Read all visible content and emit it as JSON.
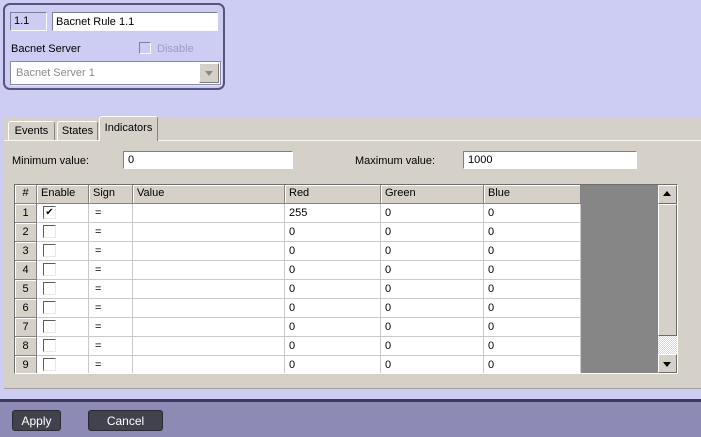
{
  "header_panel": {
    "id_value": "1.1",
    "name_value": "Bacnet Rule 1.1",
    "server_label": "Bacnet Server",
    "disable_label": "Disable",
    "disable_checked": false,
    "server_value": "Bacnet Server 1"
  },
  "tabs": [
    {
      "label": "Events",
      "active": false
    },
    {
      "label": "States",
      "active": false
    },
    {
      "label": "Indicators",
      "active": true
    }
  ],
  "range": {
    "min_label": "Minimum value:",
    "min_value": "0",
    "max_label": "Maximum value:",
    "max_value": "1000"
  },
  "table": {
    "columns": [
      "#",
      "Enable",
      "Sign",
      "Value",
      "Red",
      "Green",
      "Blue"
    ],
    "check_glyph": "✔",
    "rows": [
      {
        "num": "1",
        "enabled": true,
        "sign": "=",
        "value": "",
        "red": "255",
        "green": "0",
        "blue": "0"
      },
      {
        "num": "2",
        "enabled": false,
        "sign": "=",
        "value": "",
        "red": "0",
        "green": "0",
        "blue": "0"
      },
      {
        "num": "3",
        "enabled": false,
        "sign": "=",
        "value": "",
        "red": "0",
        "green": "0",
        "blue": "0"
      },
      {
        "num": "4",
        "enabled": false,
        "sign": "=",
        "value": "",
        "red": "0",
        "green": "0",
        "blue": "0"
      },
      {
        "num": "5",
        "enabled": false,
        "sign": "=",
        "value": "",
        "red": "0",
        "green": "0",
        "blue": "0"
      },
      {
        "num": "6",
        "enabled": false,
        "sign": "=",
        "value": "",
        "red": "0",
        "green": "0",
        "blue": "0"
      },
      {
        "num": "7",
        "enabled": false,
        "sign": "=",
        "value": "",
        "red": "0",
        "green": "0",
        "blue": "0"
      },
      {
        "num": "8",
        "enabled": false,
        "sign": "=",
        "value": "",
        "red": "0",
        "green": "0",
        "blue": "0"
      },
      {
        "num": "9",
        "enabled": false,
        "sign": "=",
        "value": "",
        "red": "0",
        "green": "0",
        "blue": "0"
      }
    ]
  },
  "footer": {
    "apply_label": "Apply",
    "cancel_label": "Cancel"
  },
  "colors": {
    "lavender": "#cdcdf4",
    "panel_gray": "#d5d1c9",
    "dead_gray": "#868686",
    "footer_purple": "#8d8bb5",
    "footer_line": "#3b3860",
    "button_dark": "#42424e",
    "disabled_text": "#9c9cc2"
  }
}
